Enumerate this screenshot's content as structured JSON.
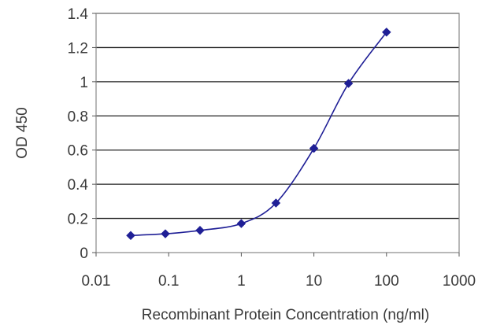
{
  "chart_data": {
    "type": "line",
    "xlabel": "Recombinant Protein Concentration (ng/ml)",
    "ylabel": "OD 450",
    "xscale": "log",
    "xlim": [
      0.01,
      1000
    ],
    "ylim": [
      0,
      1.4
    ],
    "x_ticks": [
      0.01,
      0.1,
      1,
      10,
      100,
      1000
    ],
    "x_tick_labels": [
      "0.01",
      "0.1",
      "1",
      "10",
      "100",
      "1000"
    ],
    "y_ticks": [
      0,
      0.2,
      0.4,
      0.6,
      0.8,
      1,
      1.2,
      1.4
    ],
    "y_tick_labels": [
      "0",
      "0.2",
      "0.4",
      "0.6",
      "0.8",
      "1",
      "1.2",
      "1.4"
    ],
    "grid": "horizontal",
    "legend": "none",
    "series": [
      {
        "x": [
          0.03,
          0.09,
          0.27,
          1,
          3,
          10,
          30,
          100
        ],
        "y": [
          0.1,
          0.11,
          0.13,
          0.17,
          0.29,
          0.61,
          0.99,
          1.29
        ],
        "marker": "diamond",
        "color": "#1f1f96"
      }
    ],
    "colors": {
      "line": "#1f1f96",
      "grid": "#222222",
      "frame": "#888888"
    }
  }
}
